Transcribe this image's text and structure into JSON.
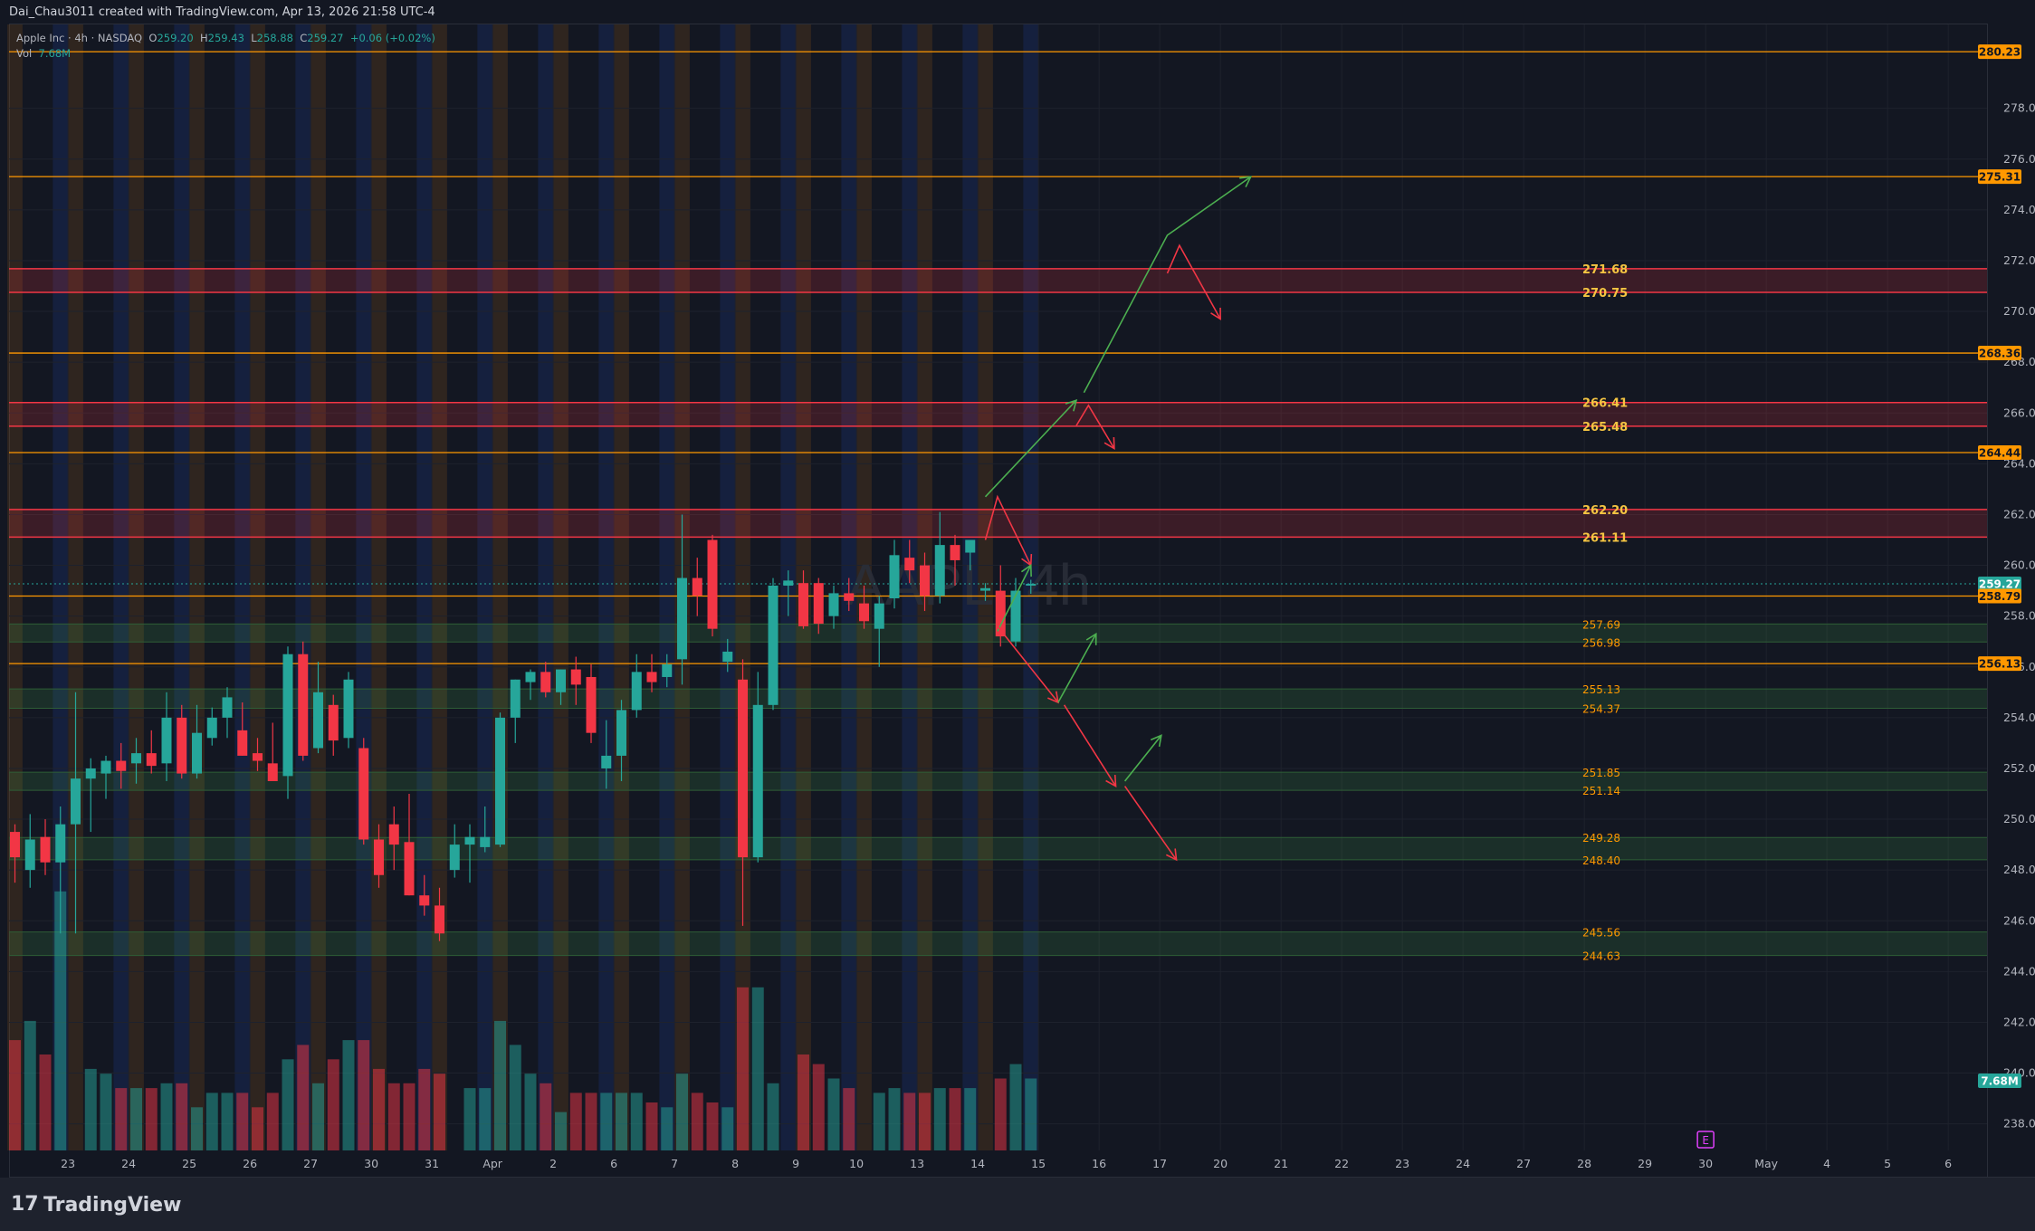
{
  "header": {
    "creator_line": "Dai_Chau3011 created with TradingView.com, Apr 13, 2026 21:58 UTC-4"
  },
  "legend": {
    "symbol": "Apple Inc · 4h · NASDAQ",
    "o_label": "O",
    "o_value": "259.20",
    "h_label": "H",
    "h_value": "259.43",
    "l_label": "L",
    "l_value": "258.88",
    "c_label": "C",
    "c_value": "259.27",
    "change": "+0.06 (+0.02%)",
    "vol_label": "Vol",
    "vol_value": "7.68M"
  },
  "watermark": "AAPL, 4h",
  "footer": {
    "logo_glyph": "17",
    "brand": "TradingView"
  },
  "colors": {
    "background": "#131722",
    "up": "#26a69a",
    "down": "#f23645",
    "orange_line": "#ff9800",
    "red_zone": "#f23645",
    "green_zone": "#4caf50",
    "arrow_green": "#4caf50",
    "arrow_red": "#f23645",
    "session_blue": "#1e3a8a",
    "session_orange": "#7a4a1a"
  },
  "chart_data": {
    "type": "candlestick",
    "symbol": "AAPL",
    "interval": "4h",
    "exchange": "NASDAQ",
    "ylim": [
      237.0,
      281.0
    ],
    "y_ticks": [
      "238.00",
      "240.00",
      "242.00",
      "244.00",
      "246.00",
      "248.00",
      "250.00",
      "252.00",
      "254.00",
      "256.00",
      "258.00",
      "260.00",
      "262.00",
      "264.00",
      "266.00",
      "268.00",
      "270.00",
      "272.00",
      "274.00",
      "276.00",
      "278.00"
    ],
    "x_ticks": [
      {
        "label": "23",
        "slot": 3.5
      },
      {
        "label": "24",
        "slot": 7.5
      },
      {
        "label": "25",
        "slot": 11.5
      },
      {
        "label": "26",
        "slot": 15.5
      },
      {
        "label": "27",
        "slot": 19.5
      },
      {
        "label": "30",
        "slot": 23.5
      },
      {
        "label": "31",
        "slot": 27.5
      },
      {
        "label": "Apr",
        "slot": 31.5
      },
      {
        "label": "2",
        "slot": 35.5
      },
      {
        "label": "6",
        "slot": 39.5
      },
      {
        "label": "7",
        "slot": 43.5
      },
      {
        "label": "8",
        "slot": 47.5
      },
      {
        "label": "9",
        "slot": 51.5
      },
      {
        "label": "10",
        "slot": 55.5
      },
      {
        "label": "13",
        "slot": 59.5
      },
      {
        "label": "14",
        "slot": 63.5
      },
      {
        "label": "15",
        "slot": 67.5
      },
      {
        "label": "16",
        "slot": 71.5
      },
      {
        "label": "17",
        "slot": 75.5
      },
      {
        "label": "20",
        "slot": 79.5
      },
      {
        "label": "21",
        "slot": 83.5
      },
      {
        "label": "22",
        "slot": 87.5
      },
      {
        "label": "23",
        "slot": 91.5
      },
      {
        "label": "24",
        "slot": 95.5
      },
      {
        "label": "27",
        "slot": 99.5
      },
      {
        "label": "28",
        "slot": 103.5
      },
      {
        "label": "29",
        "slot": 107.5
      },
      {
        "label": "30",
        "slot": 111.5
      },
      {
        "label": "May",
        "slot": 115.5
      },
      {
        "label": "4",
        "slot": 119.5
      },
      {
        "label": "5",
        "slot": 123.5
      },
      {
        "label": "6",
        "slot": 127.5
      }
    ],
    "candles": [
      {
        "o": 249.5,
        "h": 249.8,
        "l": 247.5,
        "c": 248.5,
        "v": 2.3
      },
      {
        "o": 248.0,
        "h": 250.2,
        "l": 247.3,
        "c": 249.2,
        "v": 2.7
      },
      {
        "o": 249.3,
        "h": 250.0,
        "l": 247.8,
        "c": 248.3,
        "v": 2.0
      },
      {
        "o": 248.3,
        "h": 250.5,
        "l": 245.5,
        "c": 249.8,
        "v": 5.4
      },
      {
        "o": 249.8,
        "h": 255.0,
        "l": 245.5,
        "c": 251.6,
        "v": 0.0
      },
      {
        "o": 251.6,
        "h": 252.4,
        "l": 249.5,
        "c": 252.0,
        "v": 1.7
      },
      {
        "o": 251.8,
        "h": 252.5,
        "l": 250.8,
        "c": 252.3,
        "v": 1.6
      },
      {
        "o": 252.3,
        "h": 253.0,
        "l": 251.2,
        "c": 251.9,
        "v": 1.3
      },
      {
        "o": 252.2,
        "h": 253.2,
        "l": 251.4,
        "c": 252.6,
        "v": 1.3
      },
      {
        "o": 252.6,
        "h": 253.5,
        "l": 251.8,
        "c": 252.1,
        "v": 1.3
      },
      {
        "o": 252.2,
        "h": 255.0,
        "l": 251.5,
        "c": 254.0,
        "v": 1.4
      },
      {
        "o": 254.0,
        "h": 254.5,
        "l": 251.6,
        "c": 251.8,
        "v": 1.4
      },
      {
        "o": 251.8,
        "h": 254.5,
        "l": 251.6,
        "c": 253.4,
        "v": 0.9
      },
      {
        "o": 253.2,
        "h": 254.4,
        "l": 252.9,
        "c": 254.0,
        "v": 1.2
      },
      {
        "o": 254.0,
        "h": 255.2,
        "l": 253.2,
        "c": 254.8,
        "v": 1.2
      },
      {
        "o": 253.5,
        "h": 254.6,
        "l": 252.5,
        "c": 252.5,
        "v": 1.2
      },
      {
        "o": 252.6,
        "h": 253.2,
        "l": 251.9,
        "c": 252.3,
        "v": 0.9
      },
      {
        "o": 252.2,
        "h": 253.8,
        "l": 251.8,
        "c": 251.5,
        "v": 1.2
      },
      {
        "o": 251.7,
        "h": 256.8,
        "l": 250.8,
        "c": 256.5,
        "v": 1.9
      },
      {
        "o": 256.5,
        "h": 257.0,
        "l": 252.3,
        "c": 252.5,
        "v": 2.2
      },
      {
        "o": 252.8,
        "h": 256.2,
        "l": 252.6,
        "c": 255.0,
        "v": 1.4
      },
      {
        "o": 254.5,
        "h": 254.9,
        "l": 252.5,
        "c": 253.1,
        "v": 1.9
      },
      {
        "o": 253.2,
        "h": 255.8,
        "l": 252.8,
        "c": 255.5,
        "v": 2.3
      },
      {
        "o": 252.8,
        "h": 253.2,
        "l": 249.0,
        "c": 249.2,
        "v": 2.3
      },
      {
        "o": 249.2,
        "h": 249.8,
        "l": 247.3,
        "c": 247.8,
        "v": 1.7
      },
      {
        "o": 249.8,
        "h": 250.5,
        "l": 248.0,
        "c": 249.0,
        "v": 1.4
      },
      {
        "o": 249.1,
        "h": 251.0,
        "l": 247.0,
        "c": 247.0,
        "v": 1.4
      },
      {
        "o": 247.0,
        "h": 247.8,
        "l": 246.2,
        "c": 246.6,
        "v": 1.7
      },
      {
        "o": 246.6,
        "h": 247.3,
        "l": 245.2,
        "c": 245.5,
        "v": 1.6
      },
      {
        "o": 248.0,
        "h": 249.8,
        "l": 247.7,
        "c": 249.0,
        "v": 0.0
      },
      {
        "o": 249.0,
        "h": 249.8,
        "l": 247.5,
        "c": 249.3,
        "v": 1.3
      },
      {
        "o": 248.9,
        "h": 250.5,
        "l": 248.7,
        "c": 249.3,
        "v": 1.3
      },
      {
        "o": 249.0,
        "h": 254.2,
        "l": 248.9,
        "c": 254.0,
        "v": 2.7
      },
      {
        "o": 254.0,
        "h": 255.5,
        "l": 253.0,
        "c": 255.5,
        "v": 2.2
      },
      {
        "o": 255.4,
        "h": 255.9,
        "l": 254.7,
        "c": 255.8,
        "v": 1.6
      },
      {
        "o": 255.8,
        "h": 256.2,
        "l": 254.8,
        "c": 255.0,
        "v": 1.4
      },
      {
        "o": 255.0,
        "h": 255.9,
        "l": 254.5,
        "c": 255.9,
        "v": 0.8
      },
      {
        "o": 255.9,
        "h": 256.4,
        "l": 254.5,
        "c": 255.3,
        "v": 1.2
      },
      {
        "o": 255.6,
        "h": 256.1,
        "l": 253.0,
        "c": 253.4,
        "v": 1.2
      },
      {
        "o": 252.0,
        "h": 253.9,
        "l": 251.2,
        "c": 252.5,
        "v": 1.2
      },
      {
        "o": 252.5,
        "h": 254.7,
        "l": 251.5,
        "c": 254.3,
        "v": 1.2
      },
      {
        "o": 254.3,
        "h": 256.5,
        "l": 254.0,
        "c": 255.8,
        "v": 1.2
      },
      {
        "o": 255.8,
        "h": 256.5,
        "l": 255.0,
        "c": 255.4,
        "v": 1.0
      },
      {
        "o": 255.6,
        "h": 256.5,
        "l": 255.2,
        "c": 256.1,
        "v": 0.9
      },
      {
        "o": 256.3,
        "h": 262.0,
        "l": 255.3,
        "c": 259.5,
        "v": 1.6
      },
      {
        "o": 259.5,
        "h": 260.3,
        "l": 258.0,
        "c": 258.8,
        "v": 1.2
      },
      {
        "o": 261.0,
        "h": 261.2,
        "l": 257.2,
        "c": 257.5,
        "v": 1.0
      },
      {
        "o": 256.2,
        "h": 257.1,
        "l": 255.8,
        "c": 256.6,
        "v": 0.9
      },
      {
        "o": 255.5,
        "h": 256.3,
        "l": 245.8,
        "c": 248.5,
        "v": 3.4
      },
      {
        "o": 248.5,
        "h": 255.8,
        "l": 248.3,
        "c": 254.5,
        "v": 3.4
      },
      {
        "o": 254.5,
        "h": 259.5,
        "l": 254.3,
        "c": 259.2,
        "v": 1.4
      },
      {
        "o": 259.2,
        "h": 259.8,
        "l": 258.0,
        "c": 259.4,
        "v": 0.0
      },
      {
        "o": 259.3,
        "h": 259.8,
        "l": 257.5,
        "c": 257.6,
        "v": 2.0
      },
      {
        "o": 259.3,
        "h": 259.5,
        "l": 257.3,
        "c": 257.7,
        "v": 1.8
      },
      {
        "o": 258.0,
        "h": 259.2,
        "l": 257.5,
        "c": 258.9,
        "v": 1.5
      },
      {
        "o": 258.9,
        "h": 259.5,
        "l": 258.2,
        "c": 258.6,
        "v": 1.3
      },
      {
        "o": 258.5,
        "h": 259.2,
        "l": 257.5,
        "c": 257.8,
        "v": 0.0
      },
      {
        "o": 257.5,
        "h": 258.8,
        "l": 256.0,
        "c": 258.5,
        "v": 1.2
      },
      {
        "o": 258.7,
        "h": 261.0,
        "l": 258.3,
        "c": 260.4,
        "v": 1.3
      },
      {
        "o": 260.3,
        "h": 261.0,
        "l": 259.3,
        "c": 259.8,
        "v": 1.2
      },
      {
        "o": 260.0,
        "h": 260.5,
        "l": 258.2,
        "c": 258.8,
        "v": 1.2
      },
      {
        "o": 258.8,
        "h": 262.1,
        "l": 258.5,
        "c": 260.8,
        "v": 1.3
      },
      {
        "o": 260.8,
        "h": 261.2,
        "l": 259.2,
        "c": 260.2,
        "v": 1.3
      },
      {
        "o": 260.5,
        "h": 261.0,
        "l": 259.8,
        "c": 261.0,
        "v": 1.3
      },
      {
        "o": 259.0,
        "h": 259.3,
        "l": 258.6,
        "c": 259.1,
        "v": 0.0
      },
      {
        "o": 259.0,
        "h": 260.0,
        "l": 256.8,
        "c": 257.2,
        "v": 1.5
      },
      {
        "o": 257.0,
        "h": 259.5,
        "l": 256.8,
        "c": 259.0,
        "v": 1.8
      },
      {
        "o": 259.2,
        "h": 259.43,
        "l": 258.88,
        "c": 259.27,
        "v": 1.5
      }
    ],
    "orange_levels": [
      280.23,
      275.31,
      268.36,
      264.44,
      258.79,
      256.13
    ],
    "red_zones": [
      {
        "top": 271.68,
        "bottom": 270.75,
        "top_label": "271.68",
        "bottom_label": "270.75"
      },
      {
        "top": 266.41,
        "bottom": 265.48,
        "top_label": "266.41",
        "bottom_label": "265.48"
      },
      {
        "top": 262.2,
        "bottom": 261.11,
        "top_label": "262.20",
        "bottom_label": "261.11"
      }
    ],
    "green_zones": [
      {
        "top": 257.69,
        "bottom": 256.98,
        "top_label": "257.69",
        "bottom_label": "256.98"
      },
      {
        "top": 255.13,
        "bottom": 254.37,
        "top_label": "255.13",
        "bottom_label": "254.37"
      },
      {
        "top": 251.85,
        "bottom": 251.14,
        "top_label": "251.85",
        "bottom_label": "251.14"
      },
      {
        "top": 249.28,
        "bottom": 248.4,
        "top_label": "249.28",
        "bottom_label": "248.40"
      },
      {
        "top": 245.56,
        "bottom": 244.63,
        "top_label": "245.56",
        "bottom_label": "244.63"
      }
    ],
    "price_badges": [
      {
        "value": 280.23,
        "label": "280.23",
        "kind": "orange"
      },
      {
        "value": 275.31,
        "label": "275.31",
        "kind": "orange"
      },
      {
        "value": 268.36,
        "label": "268.36",
        "kind": "orange"
      },
      {
        "value": 264.44,
        "label": "264.44",
        "kind": "orange"
      },
      {
        "value": 259.27,
        "label": "259.27",
        "kind": "current"
      },
      {
        "value": 258.79,
        "label": "258.79",
        "kind": "orange"
      },
      {
        "value": 256.13,
        "label": "256.13",
        "kind": "orange"
      }
    ],
    "volume_badge": {
      "label": "7.68M"
    },
    "earnings_marker": {
      "label": "E",
      "slot": 111.5
    },
    "projection_paths": [
      {
        "color": "green",
        "points": [
          [
            64,
            262.7
          ],
          [
            70,
            266.5
          ]
        ]
      },
      {
        "color": "green",
        "points": [
          [
            70.5,
            266.8
          ],
          [
            76,
            273.0
          ],
          [
            81.5,
            275.3
          ]
        ]
      },
      {
        "color": "red",
        "points": [
          [
            64,
            261.0
          ],
          [
            64.8,
            262.7
          ],
          [
            67,
            260.0
          ]
        ]
      },
      {
        "color": "red",
        "points": [
          [
            70,
            265.5
          ],
          [
            70.8,
            266.3
          ],
          [
            72.5,
            264.6
          ]
        ]
      },
      {
        "color": "red",
        "points": [
          [
            76,
            271.5
          ],
          [
            76.8,
            272.6
          ],
          [
            79.5,
            269.7
          ]
        ]
      },
      {
        "color": "green",
        "points": [
          [
            64.8,
            257.4
          ],
          [
            67,
            260.0
          ]
        ]
      },
      {
        "color": "red",
        "points": [
          [
            64.8,
            257.6
          ],
          [
            68.8,
            254.6
          ]
        ]
      },
      {
        "color": "green",
        "points": [
          [
            68.8,
            254.6
          ],
          [
            71.3,
            257.3
          ]
        ]
      },
      {
        "color": "red",
        "points": [
          [
            69.2,
            254.5
          ],
          [
            72.6,
            251.3
          ]
        ]
      },
      {
        "color": "green",
        "points": [
          [
            73.2,
            251.5
          ],
          [
            75.6,
            253.3
          ]
        ]
      },
      {
        "color": "red",
        "points": [
          [
            73.2,
            251.3
          ],
          [
            76.6,
            248.4
          ]
        ]
      }
    ]
  }
}
